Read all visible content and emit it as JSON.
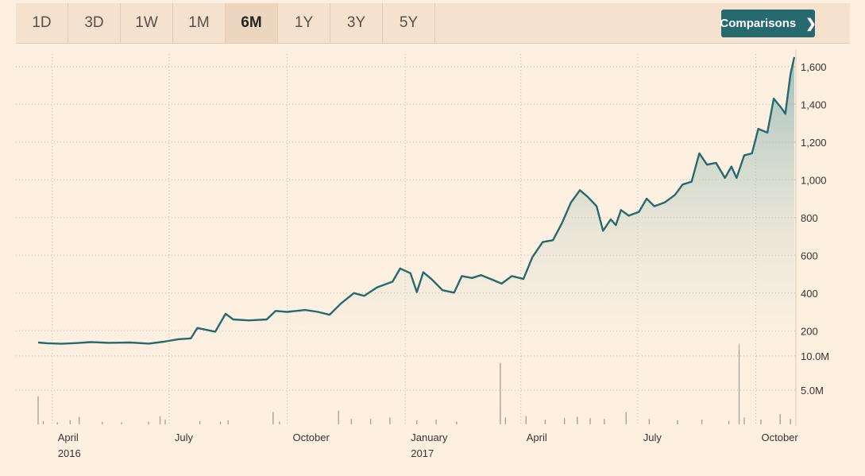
{
  "toolbar": {
    "tabs": [
      {
        "label": "1D",
        "active": false
      },
      {
        "label": "3D",
        "active": false
      },
      {
        "label": "1W",
        "active": false
      },
      {
        "label": "1M",
        "active": false
      },
      {
        "label": "6M",
        "active": true
      },
      {
        "label": "1Y",
        "active": false
      },
      {
        "label": "3Y",
        "active": false
      },
      {
        "label": "5Y",
        "active": false
      }
    ],
    "comparisons_label": "Comparisons",
    "comparisons_icon": "chevron-right-icon"
  },
  "colors": {
    "background": "#fdf0e0",
    "line": "#26696f",
    "area_fill_top": "#8fb7b3",
    "volume_bars": "#a8a39d",
    "button": "#26696f"
  },
  "chart_data": [
    {
      "type": "line",
      "fill": "area",
      "x_axis": {
        "type": "date",
        "start": "2016-03-21",
        "end": "2017-10-31"
      },
      "ylim": [
        100,
        1700
      ],
      "yticks": [
        200,
        400,
        600,
        800,
        1000,
        1200,
        1400,
        1600
      ],
      "ytick_labels": [
        "200",
        "400",
        "600",
        "800",
        "1,000",
        "1,200",
        "1,400",
        "1,600"
      ],
      "grid": true,
      "y_axis_side": "right",
      "x_tick_labels": [
        {
          "date": "2016-04-01",
          "label": "April",
          "sublabel": "2016"
        },
        {
          "date": "2016-07-01",
          "label": "July",
          "sublabel": ""
        },
        {
          "date": "2016-10-01",
          "label": "October",
          "sublabel": ""
        },
        {
          "date": "2017-01-01",
          "label": "January",
          "sublabel": "2017"
        },
        {
          "date": "2017-04-01",
          "label": "April",
          "sublabel": ""
        },
        {
          "date": "2017-07-01",
          "label": "July",
          "sublabel": ""
        },
        {
          "date": "2017-10-01",
          "label": "October",
          "sublabel": ""
        }
      ],
      "points": [
        [
          "2016-03-21",
          138
        ],
        [
          "2016-03-28",
          134
        ],
        [
          "2016-04-08",
          131
        ],
        [
          "2016-04-20",
          135
        ],
        [
          "2016-05-01",
          140
        ],
        [
          "2016-05-15",
          136
        ],
        [
          "2016-06-01",
          138
        ],
        [
          "2016-06-15",
          132
        ],
        [
          "2016-06-27",
          142
        ],
        [
          "2016-07-08",
          155
        ],
        [
          "2016-07-18",
          160
        ],
        [
          "2016-07-23",
          215
        ],
        [
          "2016-07-30",
          205
        ],
        [
          "2016-08-06",
          195
        ],
        [
          "2016-08-14",
          290
        ],
        [
          "2016-08-20",
          260
        ],
        [
          "2016-09-01",
          255
        ],
        [
          "2016-09-15",
          260
        ],
        [
          "2016-09-22",
          305
        ],
        [
          "2016-10-01",
          300
        ],
        [
          "2016-10-15",
          310
        ],
        [
          "2016-10-25",
          300
        ],
        [
          "2016-11-03",
          285
        ],
        [
          "2016-11-12",
          345
        ],
        [
          "2016-11-22",
          400
        ],
        [
          "2016-11-30",
          385
        ],
        [
          "2016-12-10",
          430
        ],
        [
          "2016-12-22",
          460
        ],
        [
          "2016-12-28",
          530
        ],
        [
          "2017-01-05",
          505
        ],
        [
          "2017-01-10",
          405
        ],
        [
          "2017-01-15",
          510
        ],
        [
          "2017-01-22",
          470
        ],
        [
          "2017-01-30",
          415
        ],
        [
          "2017-02-08",
          402
        ],
        [
          "2017-02-14",
          490
        ],
        [
          "2017-02-22",
          480
        ],
        [
          "2017-03-01",
          495
        ],
        [
          "2017-03-10",
          470
        ],
        [
          "2017-03-17",
          450
        ],
        [
          "2017-03-25",
          490
        ],
        [
          "2017-04-03",
          475
        ],
        [
          "2017-04-10",
          590
        ],
        [
          "2017-04-18",
          670
        ],
        [
          "2017-04-26",
          680
        ],
        [
          "2017-05-03",
          770
        ],
        [
          "2017-05-10",
          880
        ],
        [
          "2017-05-17",
          945
        ],
        [
          "2017-05-23",
          910
        ],
        [
          "2017-05-30",
          860
        ],
        [
          "2017-06-04",
          730
        ],
        [
          "2017-06-10",
          790
        ],
        [
          "2017-06-14",
          760
        ],
        [
          "2017-06-18",
          840
        ],
        [
          "2017-06-24",
          810
        ],
        [
          "2017-07-02",
          830
        ],
        [
          "2017-07-08",
          900
        ],
        [
          "2017-07-14",
          860
        ],
        [
          "2017-07-22",
          880
        ],
        [
          "2017-07-30",
          920
        ],
        [
          "2017-08-05",
          975
        ],
        [
          "2017-08-12",
          990
        ],
        [
          "2017-08-18",
          1140
        ],
        [
          "2017-08-24",
          1080
        ],
        [
          "2017-08-31",
          1090
        ],
        [
          "2017-09-07",
          1010
        ],
        [
          "2017-09-12",
          1070
        ],
        [
          "2017-09-16",
          1010
        ],
        [
          "2017-09-22",
          1130
        ],
        [
          "2017-09-28",
          1140
        ],
        [
          "2017-10-03",
          1270
        ],
        [
          "2017-10-10",
          1250
        ],
        [
          "2017-10-15",
          1430
        ],
        [
          "2017-10-21",
          1380
        ],
        [
          "2017-10-24",
          1350
        ],
        [
          "2017-10-28",
          1560
        ],
        [
          "2017-10-31",
          1650
        ]
      ]
    },
    {
      "type": "bar",
      "name": "volume",
      "ylim": [
        0,
        11500000
      ],
      "yticks": [
        5000000,
        10000000
      ],
      "ytick_labels": [
        "5.0M",
        "10.0M"
      ],
      "bars": [
        [
          "2016-03-21",
          4100000
        ],
        [
          "2016-03-25",
          500000
        ],
        [
          "2016-04-05",
          300000
        ],
        [
          "2016-04-15",
          600000
        ],
        [
          "2016-04-22",
          1100000
        ],
        [
          "2016-05-10",
          400000
        ],
        [
          "2016-05-25",
          300000
        ],
        [
          "2016-06-15",
          400000
        ],
        [
          "2016-06-24",
          1200000
        ],
        [
          "2016-06-28",
          700000
        ],
        [
          "2016-07-25",
          500000
        ],
        [
          "2016-08-10",
          400000
        ],
        [
          "2016-08-16",
          600000
        ],
        [
          "2016-09-20",
          1800000
        ],
        [
          "2016-09-25",
          400000
        ],
        [
          "2016-11-10",
          2000000
        ],
        [
          "2016-11-20",
          800000
        ],
        [
          "2016-12-05",
          800000
        ],
        [
          "2016-12-20",
          1000000
        ],
        [
          "2017-01-10",
          600000
        ],
        [
          "2017-01-25",
          700000
        ],
        [
          "2017-02-10",
          400000
        ],
        [
          "2017-03-16",
          9000000
        ],
        [
          "2017-03-20",
          1000000
        ],
        [
          "2017-04-05",
          1200000
        ],
        [
          "2017-04-20",
          700000
        ],
        [
          "2017-05-05",
          900000
        ],
        [
          "2017-05-15",
          1100000
        ],
        [
          "2017-05-25",
          900000
        ],
        [
          "2017-06-05",
          800000
        ],
        [
          "2017-06-22",
          1800000
        ],
        [
          "2017-07-10",
          800000
        ],
        [
          "2017-08-01",
          600000
        ],
        [
          "2017-08-20",
          700000
        ],
        [
          "2017-09-10",
          500000
        ],
        [
          "2017-09-18",
          11800000
        ],
        [
          "2017-09-22",
          1000000
        ],
        [
          "2017-10-05",
          700000
        ],
        [
          "2017-10-20",
          1500000
        ],
        [
          "2017-10-28",
          800000
        ]
      ]
    }
  ]
}
